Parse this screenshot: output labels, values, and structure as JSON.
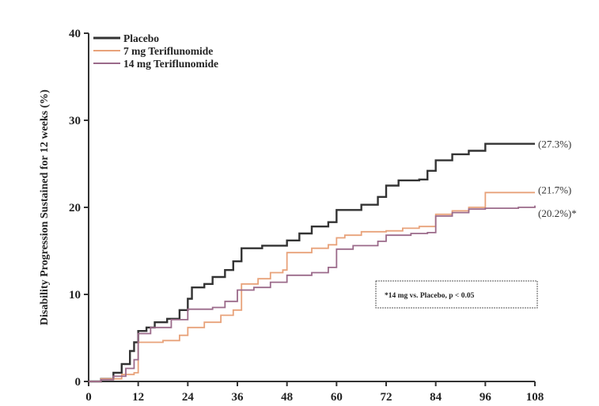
{
  "chart_data": {
    "type": "line",
    "title": "",
    "xlabel": "",
    "ylabel": "Disability Progression Sustained for 12 weeks (%)",
    "xlim": [
      0,
      108
    ],
    "ylim": [
      0,
      40
    ],
    "x_ticks": [
      0,
      12,
      24,
      36,
      48,
      60,
      72,
      84,
      96,
      108
    ],
    "y_ticks": [
      0,
      10,
      20,
      30,
      40
    ],
    "grid": false,
    "legend_position": "top-left",
    "series": [
      {
        "name": "Placebo",
        "color": "#333333",
        "end_label": "(27.3%)",
        "points": [
          [
            0,
            0
          ],
          [
            3,
            0.3
          ],
          [
            6,
            1
          ],
          [
            8,
            2
          ],
          [
            10,
            3.5
          ],
          [
            11,
            4.5
          ],
          [
            12,
            5.8
          ],
          [
            14,
            6.2
          ],
          [
            16,
            6.8
          ],
          [
            19,
            7.2
          ],
          [
            22,
            8.2
          ],
          [
            24,
            9.5
          ],
          [
            25,
            10.8
          ],
          [
            28,
            11.2
          ],
          [
            30,
            12
          ],
          [
            33,
            12.8
          ],
          [
            35,
            13.8
          ],
          [
            37,
            15.3
          ],
          [
            42,
            15.6
          ],
          [
            48,
            16.2
          ],
          [
            51,
            17
          ],
          [
            54,
            17.8
          ],
          [
            58,
            18.3
          ],
          [
            60,
            19.7
          ],
          [
            66,
            20.3
          ],
          [
            70,
            21.2
          ],
          [
            72,
            22.5
          ],
          [
            75,
            23.1
          ],
          [
            80,
            23.2
          ],
          [
            82,
            24.2
          ],
          [
            84,
            25.4
          ],
          [
            88,
            26.1
          ],
          [
            92,
            26.5
          ],
          [
            96,
            27.3
          ],
          [
            108,
            27.3
          ]
        ]
      },
      {
        "name": "7 mg Teriflunomide",
        "color": "#e8a27a",
        "end_label": "(21.7%)",
        "points": [
          [
            0,
            0
          ],
          [
            3,
            0.3
          ],
          [
            8,
            0.8
          ],
          [
            11,
            1
          ],
          [
            12,
            4.5
          ],
          [
            18,
            4.7
          ],
          [
            22,
            5.3
          ],
          [
            24,
            6.2
          ],
          [
            28,
            6.8
          ],
          [
            32,
            7.6
          ],
          [
            35,
            8.2
          ],
          [
            37,
            11.2
          ],
          [
            41,
            11.8
          ],
          [
            44,
            12.5
          ],
          [
            47,
            12.8
          ],
          [
            48,
            14.8
          ],
          [
            54,
            15.3
          ],
          [
            58,
            15.7
          ],
          [
            60,
            16.5
          ],
          [
            62,
            16.8
          ],
          [
            66,
            17.2
          ],
          [
            72,
            17.3
          ],
          [
            76,
            17.6
          ],
          [
            80,
            17.8
          ],
          [
            84,
            19.2
          ],
          [
            88,
            19.6
          ],
          [
            92,
            20
          ],
          [
            96,
            21.7
          ],
          [
            108,
            21.7
          ]
        ]
      },
      {
        "name": "14 mg Teriflunomide",
        "color": "#9b6a8a",
        "end_label": "(20.2%)*",
        "points": [
          [
            0,
            0
          ],
          [
            3,
            0.2
          ],
          [
            6,
            0.6
          ],
          [
            9,
            1.5
          ],
          [
            11,
            2.5
          ],
          [
            12,
            5.5
          ],
          [
            15,
            6.2
          ],
          [
            20,
            7.1
          ],
          [
            24,
            8.3
          ],
          [
            30,
            8.5
          ],
          [
            33,
            9.2
          ],
          [
            36,
            10.5
          ],
          [
            40,
            10.8
          ],
          [
            44,
            11.4
          ],
          [
            48,
            12.2
          ],
          [
            54,
            12.5
          ],
          [
            58,
            13.1
          ],
          [
            60,
            15.2
          ],
          [
            64,
            15.6
          ],
          [
            70,
            16.1
          ],
          [
            72,
            16.8
          ],
          [
            78,
            17
          ],
          [
            82,
            17.1
          ],
          [
            84,
            19
          ],
          [
            88,
            19.4
          ],
          [
            92,
            19.8
          ],
          [
            96,
            19.9
          ],
          [
            104,
            20
          ],
          [
            108,
            20.2
          ]
        ]
      }
    ],
    "annotation": "*14 mg vs. Placebo, p < 0.05"
  }
}
